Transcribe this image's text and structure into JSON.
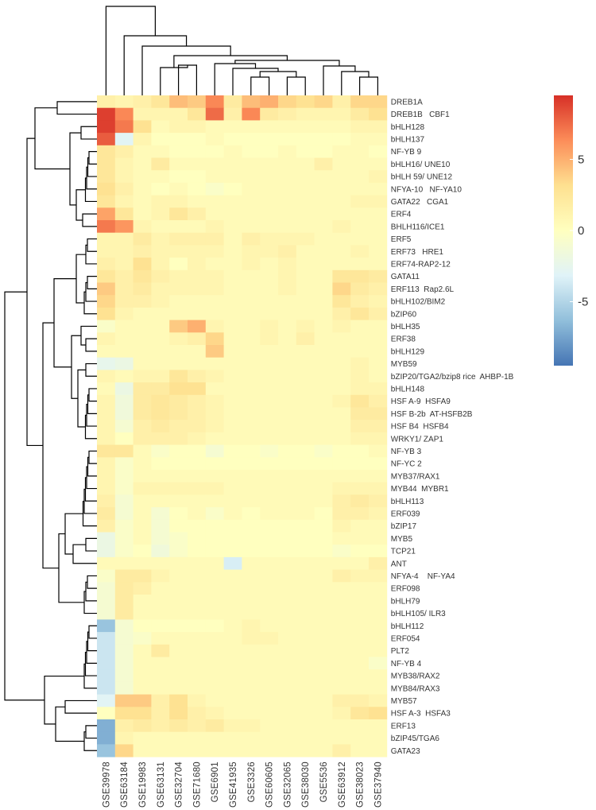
{
  "chart_data": {
    "type": "heatmap",
    "title": "",
    "columns": [
      "GSE39978",
      "GSE63184",
      "GSE19983",
      "GSE63131",
      "GSE32704",
      "GSE71680",
      "GSE6901",
      "GSE41935",
      "GSE3326",
      "GSE60605",
      "GSE32065",
      "GSE38030",
      "GSE5536",
      "GSE63912",
      "GSE38023",
      "GSE37940"
    ],
    "rows": [
      "DREB1A",
      "DREB1B   CBF1",
      "bHLH128",
      "bHLH137",
      "NF-YB 9",
      "bHLH16/ UNE10",
      "bHLH 59/ UNE12",
      "NFYA-10   NF-YA10",
      "GATA22   CGA1",
      "ERF4",
      "BHLH116/ICE1",
      "ERF5",
      "ERF73   HRE1",
      "ERF74-RAP2-12",
      "GATA11",
      "ERF113  Rap2.6L",
      "bHLH102/BIM2",
      "bZIP60",
      "bHLH35",
      "ERF38",
      "bHLH129",
      "MYB59",
      "bZIP20/TGA2/bzip8 rice  AHBP-1B",
      "bHLH148",
      "HSF A-9  HSFA9",
      "HSF B-2b  AT-HSFB2B",
      "HSF B4  HSFB4",
      "WRKY1/ ZAP1",
      "NF-YB 3",
      "NF-YC 2",
      "MYB37/RAX1",
      "MYB44  MYBR1",
      "bHLH113",
      "ERF039",
      "bZIP17",
      "MYB5",
      "TCP21",
      "ANT",
      "NFYA-4    NF-YA4",
      "ERF098",
      "bHLH79",
      "bHLH105/ ILR3",
      "bHLH112",
      "ERF054",
      "PLT2",
      "NF-YB 4",
      "MYB38/RAX2",
      "MYB84/RAX3",
      "MYB57",
      "HSF A-3  HSFA3",
      "ERF13",
      "bZIP45/TGA6",
      "GATA23"
    ],
    "values": [
      [
        1.5,
        1.0,
        1.5,
        2.5,
        4.5,
        4.0,
        6.5,
        2.0,
        4.5,
        5.0,
        3.5,
        3.0,
        3.5,
        1.5,
        3.5,
        3.5
      ],
      [
        9.0,
        6.5,
        1.0,
        1.0,
        1.0,
        2.5,
        7.5,
        1.5,
        6.5,
        2.0,
        1.5,
        1.0,
        1.0,
        1.0,
        2.0,
        3.0
      ],
      [
        9.0,
        7.0,
        3.0,
        0.5,
        1.0,
        1.0,
        0.5,
        0.5,
        0.5,
        0.5,
        0.5,
        0.5,
        0.5,
        0.5,
        1.0,
        1.0
      ],
      [
        8.0,
        -3.0,
        1.0,
        0.0,
        0.0,
        0.0,
        0.5,
        0.0,
        0.0,
        0.0,
        0.0,
        0.0,
        0.0,
        0.0,
        0.5,
        0.5
      ],
      [
        2.5,
        1.5,
        0.5,
        0.5,
        0.0,
        0.0,
        0.0,
        0.5,
        0.0,
        0.0,
        0.5,
        0.0,
        0.0,
        0.5,
        0.5,
        0.0
      ],
      [
        2.5,
        1.0,
        0.5,
        2.0,
        0.5,
        0.5,
        0.5,
        0.5,
        0.5,
        0.5,
        0.5,
        0.5,
        1.5,
        0.5,
        0.5,
        0.5
      ],
      [
        2.5,
        1.0,
        0.5,
        0.5,
        0.0,
        0.0,
        0.5,
        0.5,
        0.5,
        0.5,
        0.5,
        0.5,
        0.5,
        0.5,
        0.5,
        1.0
      ],
      [
        3.0,
        1.5,
        0.5,
        0.0,
        0.5,
        0.0,
        -0.5,
        0.0,
        0.5,
        0.5,
        0.5,
        0.5,
        0.5,
        0.5,
        0.5,
        0.5
      ],
      [
        2.5,
        1.0,
        0.5,
        1.0,
        1.0,
        0.5,
        0.5,
        0.5,
        0.5,
        0.5,
        0.5,
        0.5,
        0.5,
        0.5,
        1.0,
        1.0
      ],
      [
        5.5,
        2.5,
        0.5,
        1.0,
        2.5,
        1.5,
        0.5,
        0.5,
        0.5,
        0.5,
        0.5,
        0.5,
        0.5,
        0.5,
        0.5,
        0.5
      ],
      [
        7.0,
        6.0,
        1.0,
        0.5,
        0.5,
        0.5,
        1.0,
        0.5,
        0.5,
        0.5,
        0.5,
        0.5,
        0.5,
        1.0,
        0.5,
        0.5
      ],
      [
        1.0,
        1.0,
        2.0,
        1.0,
        1.5,
        1.5,
        1.5,
        0.5,
        1.5,
        1.0,
        1.0,
        1.0,
        0.5,
        0.5,
        0.5,
        0.5
      ],
      [
        1.0,
        1.0,
        1.5,
        1.0,
        1.0,
        1.0,
        1.0,
        0.5,
        1.0,
        1.0,
        1.5,
        0.5,
        0.5,
        0.5,
        1.0,
        0.5
      ],
      [
        1.5,
        1.0,
        3.0,
        1.0,
        0.0,
        1.0,
        0.5,
        0.5,
        1.0,
        0.5,
        1.0,
        0.5,
        0.5,
        0.5,
        0.5,
        0.5
      ],
      [
        2.5,
        1.5,
        2.5,
        1.5,
        1.0,
        1.0,
        1.0,
        0.5,
        0.5,
        0.5,
        1.0,
        0.5,
        0.5,
        2.5,
        2.5,
        2.0
      ],
      [
        4.0,
        1.5,
        2.0,
        1.0,
        1.0,
        1.0,
        1.0,
        0.5,
        0.5,
        0.5,
        1.0,
        0.5,
        0.5,
        3.5,
        2.0,
        1.5
      ],
      [
        3.5,
        1.5,
        1.5,
        1.0,
        0.5,
        0.5,
        0.5,
        0.5,
        0.5,
        0.5,
        0.5,
        0.5,
        0.5,
        2.5,
        1.5,
        1.0
      ],
      [
        3.0,
        1.0,
        0.5,
        0.5,
        0.5,
        0.5,
        0.5,
        0.5,
        0.5,
        0.5,
        0.5,
        0.5,
        0.5,
        1.5,
        2.5,
        1.5
      ],
      [
        -0.5,
        0.5,
        0.5,
        0.5,
        4.0,
        5.0,
        1.0,
        0.5,
        0.5,
        1.0,
        0.5,
        1.0,
        0.5,
        1.0,
        0.5,
        0.5
      ],
      [
        1.0,
        0.5,
        0.5,
        0.5,
        1.0,
        1.5,
        3.5,
        0.5,
        0.5,
        1.0,
        0.5,
        1.5,
        0.5,
        0.5,
        0.5,
        0.5
      ],
      [
        0.5,
        0.5,
        0.5,
        0.5,
        0.5,
        0.5,
        4.0,
        0.5,
        0.5,
        0.5,
        0.5,
        0.5,
        0.5,
        0.5,
        0.5,
        0.5
      ],
      [
        -2.5,
        -2.0,
        0.5,
        0.5,
        0.5,
        0.5,
        0.5,
        0.5,
        0.5,
        0.5,
        0.5,
        0.5,
        0.5,
        0.5,
        1.0,
        0.5
      ],
      [
        1.0,
        0.5,
        1.0,
        1.0,
        2.5,
        1.5,
        1.0,
        0.5,
        0.5,
        0.5,
        0.5,
        0.5,
        0.5,
        0.5,
        1.0,
        0.5
      ],
      [
        0.5,
        -2.0,
        2.0,
        2.0,
        3.0,
        3.0,
        0.5,
        0.5,
        0.5,
        0.5,
        0.5,
        0.5,
        0.5,
        0.5,
        1.0,
        1.0
      ],
      [
        1.0,
        -1.5,
        2.0,
        2.5,
        2.0,
        1.5,
        1.0,
        0.5,
        0.5,
        0.5,
        0.5,
        0.5,
        0.5,
        1.0,
        2.5,
        1.5
      ],
      [
        1.0,
        -1.5,
        2.0,
        2.5,
        2.0,
        1.5,
        1.0,
        0.5,
        0.5,
        0.5,
        0.5,
        0.5,
        0.5,
        0.5,
        2.0,
        2.0
      ],
      [
        1.0,
        -1.0,
        1.5,
        2.0,
        1.5,
        1.5,
        1.0,
        0.5,
        0.5,
        0.5,
        0.5,
        0.5,
        0.5,
        0.5,
        1.5,
        1.5
      ],
      [
        1.0,
        0.0,
        1.5,
        1.5,
        1.5,
        1.0,
        0.5,
        0.5,
        0.5,
        0.5,
        0.5,
        0.5,
        0.5,
        0.5,
        1.0,
        1.0
      ],
      [
        2.5,
        2.5,
        0.5,
        -0.5,
        0.0,
        0.0,
        -1.0,
        0.0,
        0.0,
        -0.5,
        0.0,
        0.0,
        -0.5,
        0.0,
        0.0,
        0.5
      ],
      [
        1.0,
        -0.5,
        0.5,
        0.0,
        0.0,
        0.0,
        0.0,
        0.0,
        0.0,
        0.0,
        0.0,
        0.0,
        0.0,
        0.0,
        0.0,
        0.0
      ],
      [
        1.0,
        -0.5,
        0.5,
        0.5,
        0.5,
        0.5,
        0.5,
        0.5,
        0.5,
        0.5,
        0.5,
        0.5,
        0.5,
        0.5,
        0.5,
        0.5
      ],
      [
        1.0,
        -0.5,
        1.0,
        1.0,
        1.0,
        1.0,
        1.0,
        0.5,
        0.5,
        0.5,
        0.5,
        0.5,
        0.5,
        1.0,
        1.0,
        1.0
      ],
      [
        1.5,
        -1.0,
        0.5,
        0.5,
        0.5,
        0.5,
        0.5,
        0.5,
        0.5,
        0.5,
        0.5,
        0.5,
        0.5,
        1.5,
        2.0,
        1.5
      ],
      [
        2.0,
        -1.0,
        0.5,
        -1.0,
        0.0,
        0.5,
        -0.5,
        0.5,
        0.0,
        0.5,
        0.5,
        0.5,
        0.0,
        1.5,
        1.5,
        1.0
      ],
      [
        1.5,
        -0.5,
        0.5,
        -1.0,
        0.0,
        0.0,
        0.0,
        0.0,
        0.0,
        0.0,
        0.0,
        0.0,
        0.0,
        1.0,
        0.5,
        0.5
      ],
      [
        -2.0,
        -0.5,
        0.5,
        -1.0,
        -0.5,
        0.0,
        0.0,
        0.0,
        0.0,
        0.0,
        0.0,
        0.0,
        0.0,
        0.5,
        0.5,
        0.5
      ],
      [
        -2.0,
        -0.5,
        0.0,
        -1.5,
        -0.5,
        0.0,
        0.0,
        0.0,
        0.0,
        0.0,
        0.0,
        0.0,
        0.0,
        -0.5,
        0.0,
        0.0
      ],
      [
        0.5,
        0.5,
        0.5,
        0.5,
        0.5,
        0.5,
        0.5,
        -3.5,
        0.5,
        0.5,
        0.5,
        0.5,
        0.5,
        0.5,
        0.5,
        1.5
      ],
      [
        -0.5,
        2.0,
        2.0,
        1.0,
        0.5,
        0.5,
        0.5,
        0.5,
        0.5,
        0.5,
        0.5,
        0.5,
        0.5,
        1.5,
        1.0,
        1.0
      ],
      [
        -1.0,
        2.0,
        1.5,
        0.5,
        0.5,
        0.5,
        0.5,
        0.5,
        0.5,
        0.5,
        0.5,
        0.5,
        0.5,
        0.5,
        0.5,
        0.5
      ],
      [
        -1.0,
        2.0,
        0.5,
        0.5,
        0.5,
        0.5,
        0.5,
        0.5,
        0.5,
        0.5,
        0.5,
        0.5,
        0.5,
        0.5,
        0.5,
        0.5
      ],
      [
        -1.0,
        2.0,
        0.5,
        0.5,
        0.5,
        0.5,
        0.5,
        0.5,
        0.5,
        0.5,
        0.5,
        0.5,
        0.5,
        0.5,
        0.5,
        0.5
      ],
      [
        -6.0,
        -1.0,
        0.0,
        0.0,
        0.0,
        0.0,
        0.0,
        0.5,
        1.0,
        0.5,
        0.5,
        0.5,
        0.5,
        0.5,
        0.5,
        0.5
      ],
      [
        -4.0,
        -1.0,
        -0.5,
        0.5,
        0.5,
        0.5,
        0.5,
        0.5,
        1.0,
        1.0,
        0.5,
        0.5,
        0.5,
        0.5,
        0.5,
        0.5
      ],
      [
        -4.0,
        -1.0,
        0.5,
        2.0,
        0.5,
        0.5,
        0.5,
        0.5,
        0.5,
        0.5,
        0.5,
        0.5,
        0.5,
        0.5,
        0.5,
        0.5
      ],
      [
        -4.0,
        -1.0,
        0.5,
        0.5,
        0.5,
        0.5,
        0.5,
        0.5,
        0.5,
        0.5,
        0.5,
        0.5,
        0.5,
        0.5,
        0.5,
        -0.5
      ],
      [
        -4.0,
        -1.0,
        0.5,
        0.5,
        0.5,
        0.5,
        0.5,
        0.5,
        0.5,
        0.5,
        0.5,
        0.5,
        0.5,
        0.5,
        0.5,
        0.5
      ],
      [
        -4.0,
        -1.0,
        0.5,
        0.5,
        0.5,
        0.5,
        0.5,
        0.5,
        0.5,
        0.5,
        0.5,
        0.5,
        0.5,
        0.5,
        0.5,
        0.5
      ],
      [
        -3.0,
        4.0,
        4.0,
        1.5,
        3.0,
        1.0,
        0.5,
        0.5,
        0.5,
        0.5,
        0.5,
        0.5,
        0.5,
        1.5,
        1.5,
        1.0
      ],
      [
        0.0,
        3.0,
        3.0,
        1.5,
        3.0,
        1.5,
        1.0,
        0.5,
        0.5,
        0.5,
        0.5,
        0.5,
        0.5,
        1.0,
        2.5,
        3.0
      ],
      [
        -7.0,
        1.5,
        2.0,
        1.5,
        2.0,
        1.5,
        2.0,
        1.0,
        1.0,
        0.5,
        0.5,
        0.5,
        0.5,
        0.5,
        0.5,
        0.5
      ],
      [
        -7.0,
        1.0,
        0.5,
        0.5,
        0.5,
        0.5,
        0.5,
        0.5,
        0.5,
        0.5,
        0.5,
        0.5,
        0.5,
        0.5,
        0.5,
        0.5
      ],
      [
        -6.0,
        3.5,
        0.5,
        0.5,
        0.5,
        0.5,
        0.5,
        0.5,
        0.5,
        0.5,
        0.5,
        0.5,
        0.5,
        1.5,
        0.5,
        0.5
      ]
    ],
    "color_scale": {
      "min": -9.5,
      "max": 9.5,
      "stops": [
        "#4575b4",
        "#91bfdb",
        "#e0f3f8",
        "#ffffbf",
        "#fee090",
        "#fc8d59",
        "#d73027"
      ],
      "ticks": [
        5,
        0,
        -5
      ]
    },
    "row_dendrogram": true,
    "column_dendrogram": true,
    "legend_placement": "top-right"
  }
}
